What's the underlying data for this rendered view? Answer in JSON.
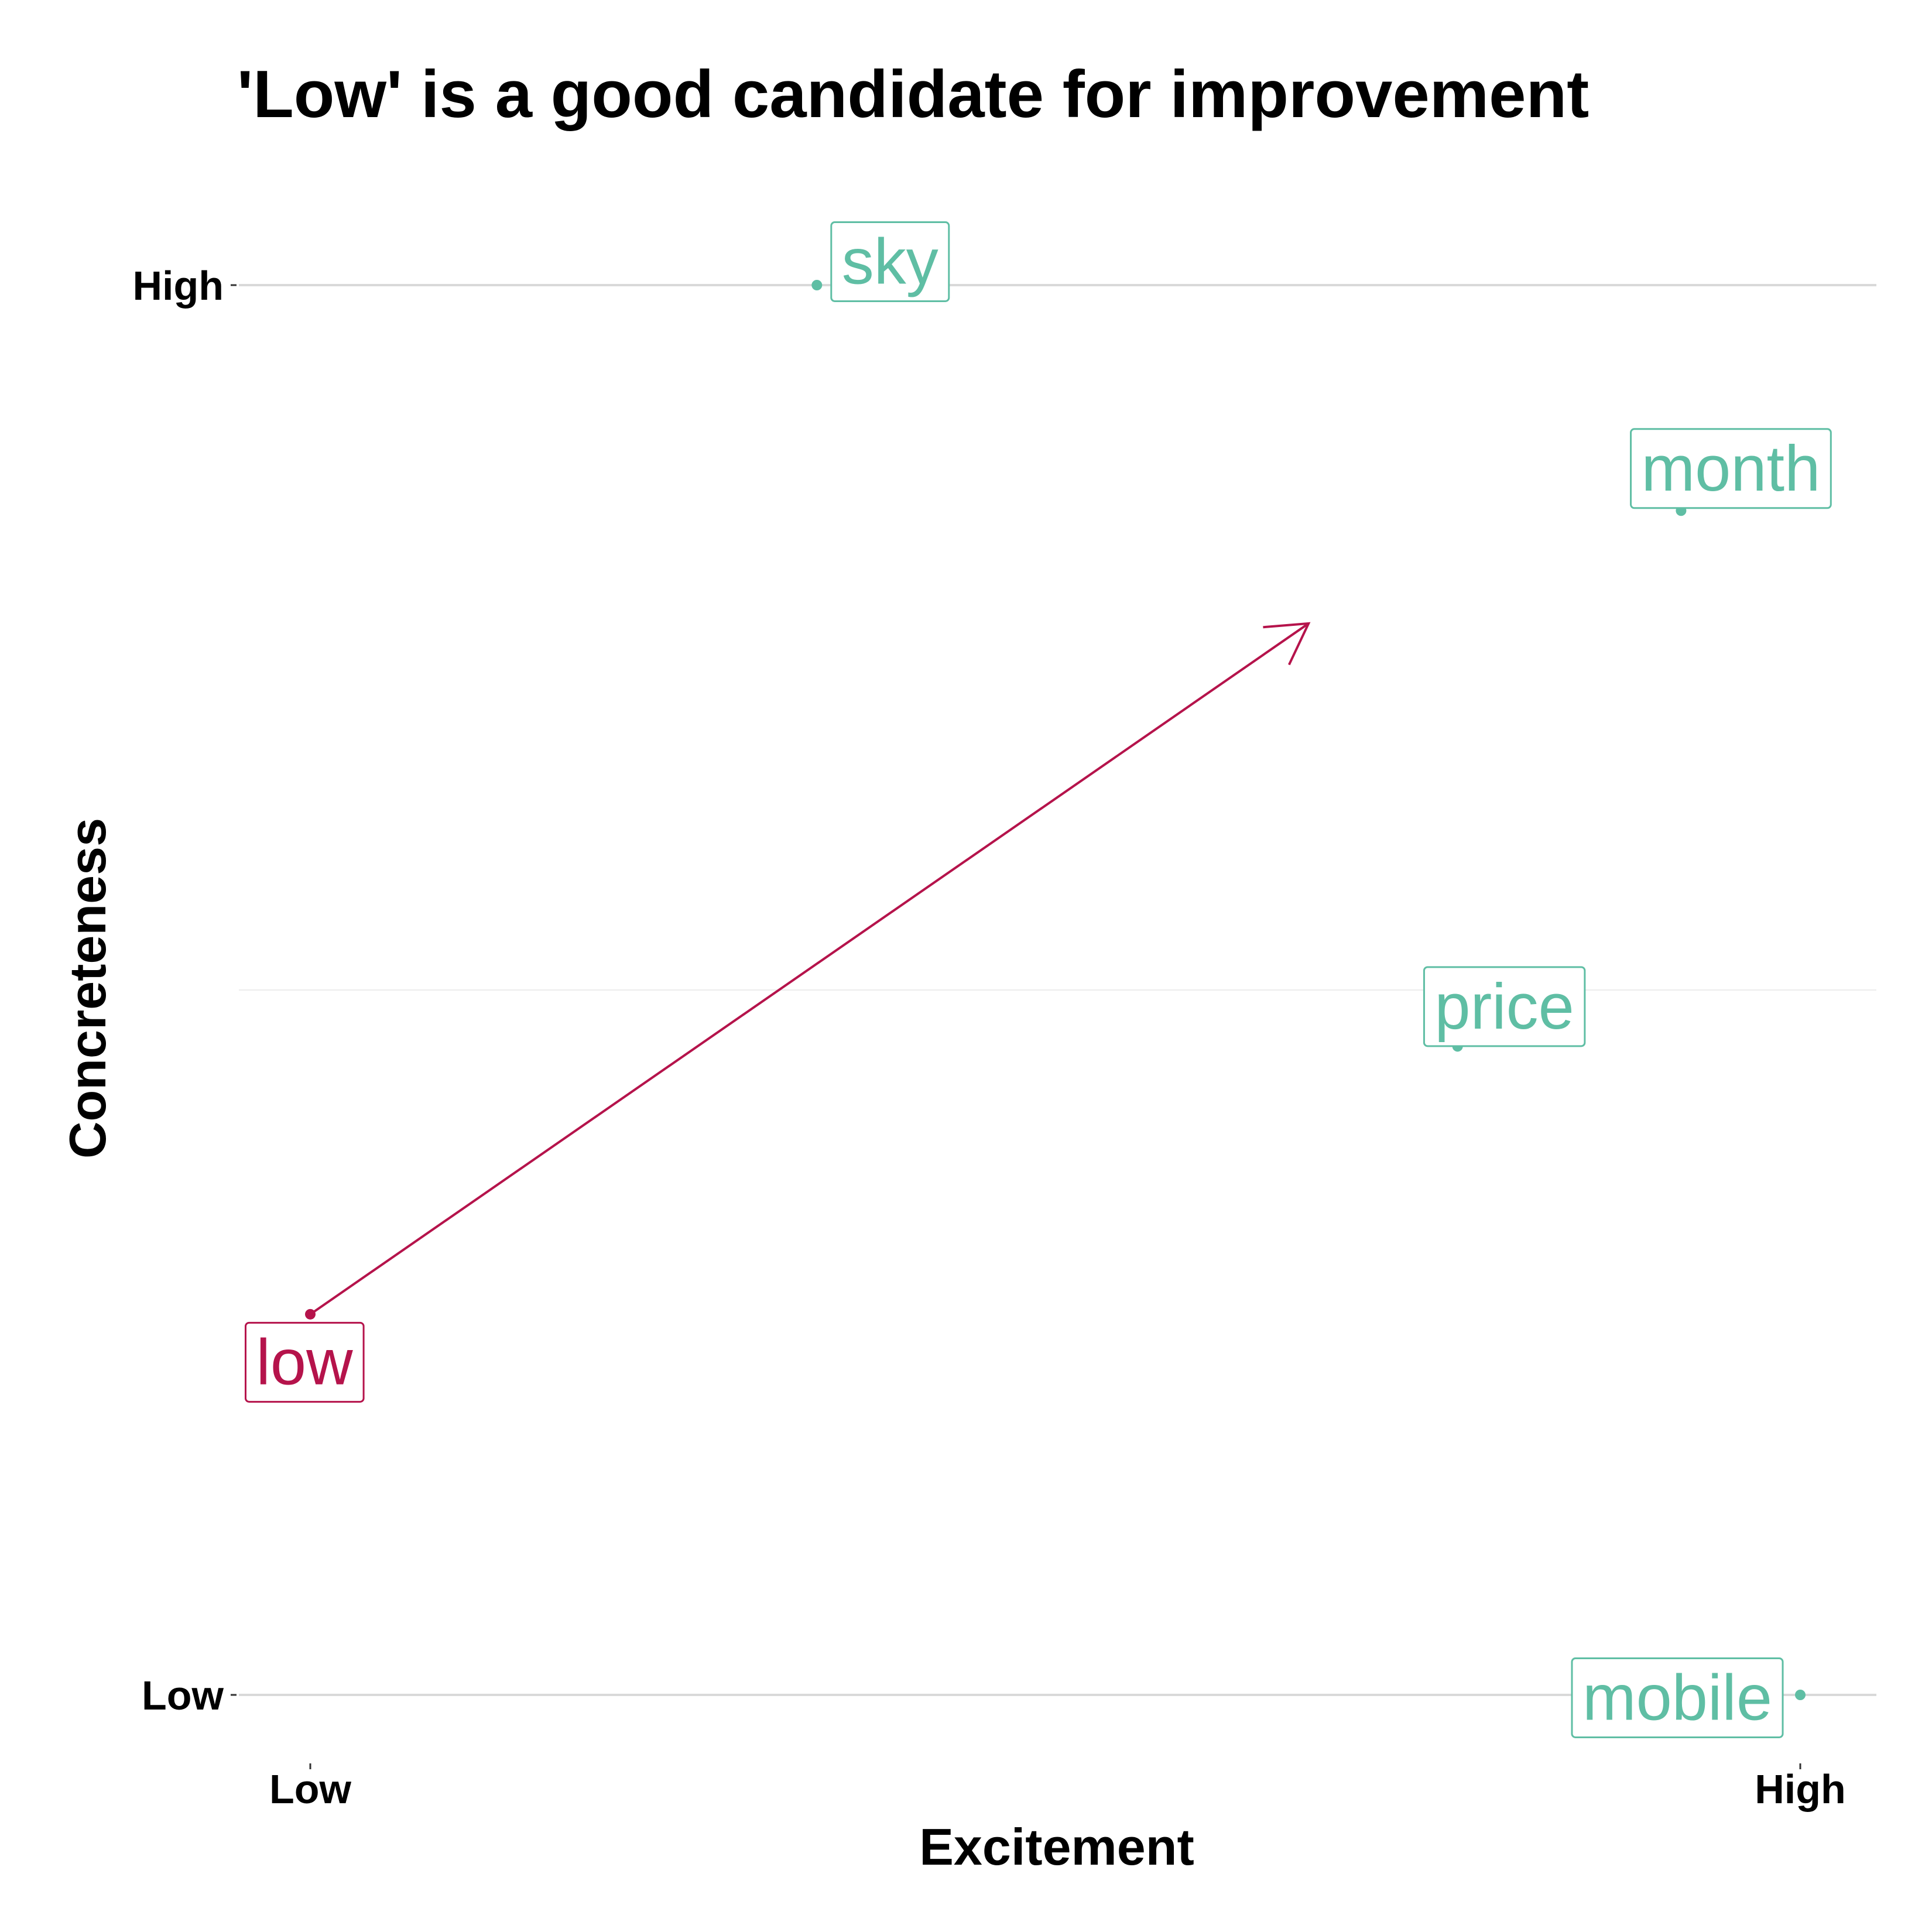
{
  "chart_data": {
    "type": "scatter",
    "title": "'Low' is a good candidate for improvement",
    "xlabel": "Excitement",
    "ylabel": "Concreteness",
    "xlim": [
      0,
      1
    ],
    "ylim": [
      0,
      1
    ],
    "x_tick_labels": [
      "Low",
      "High"
    ],
    "y_tick_labels": [
      "Low",
      "High"
    ],
    "grid": true,
    "colors": {
      "highlight": "#B5134B",
      "default": "#5FBEA4"
    },
    "points": [
      {
        "label": "sky",
        "x": 0.34,
        "y": 1.0,
        "highlight": false
      },
      {
        "label": "month",
        "x": 0.92,
        "y": 0.84,
        "highlight": false
      },
      {
        "label": "price",
        "x": 0.77,
        "y": 0.46,
        "highlight": false
      },
      {
        "label": "low",
        "x": 0.0,
        "y": 0.27,
        "highlight": true
      },
      {
        "label": "mobile",
        "x": 1.0,
        "y": 0.0,
        "highlight": false
      }
    ],
    "arrow": {
      "from": [
        0.0,
        0.27
      ],
      "to": [
        0.67,
        0.76
      ]
    }
  }
}
